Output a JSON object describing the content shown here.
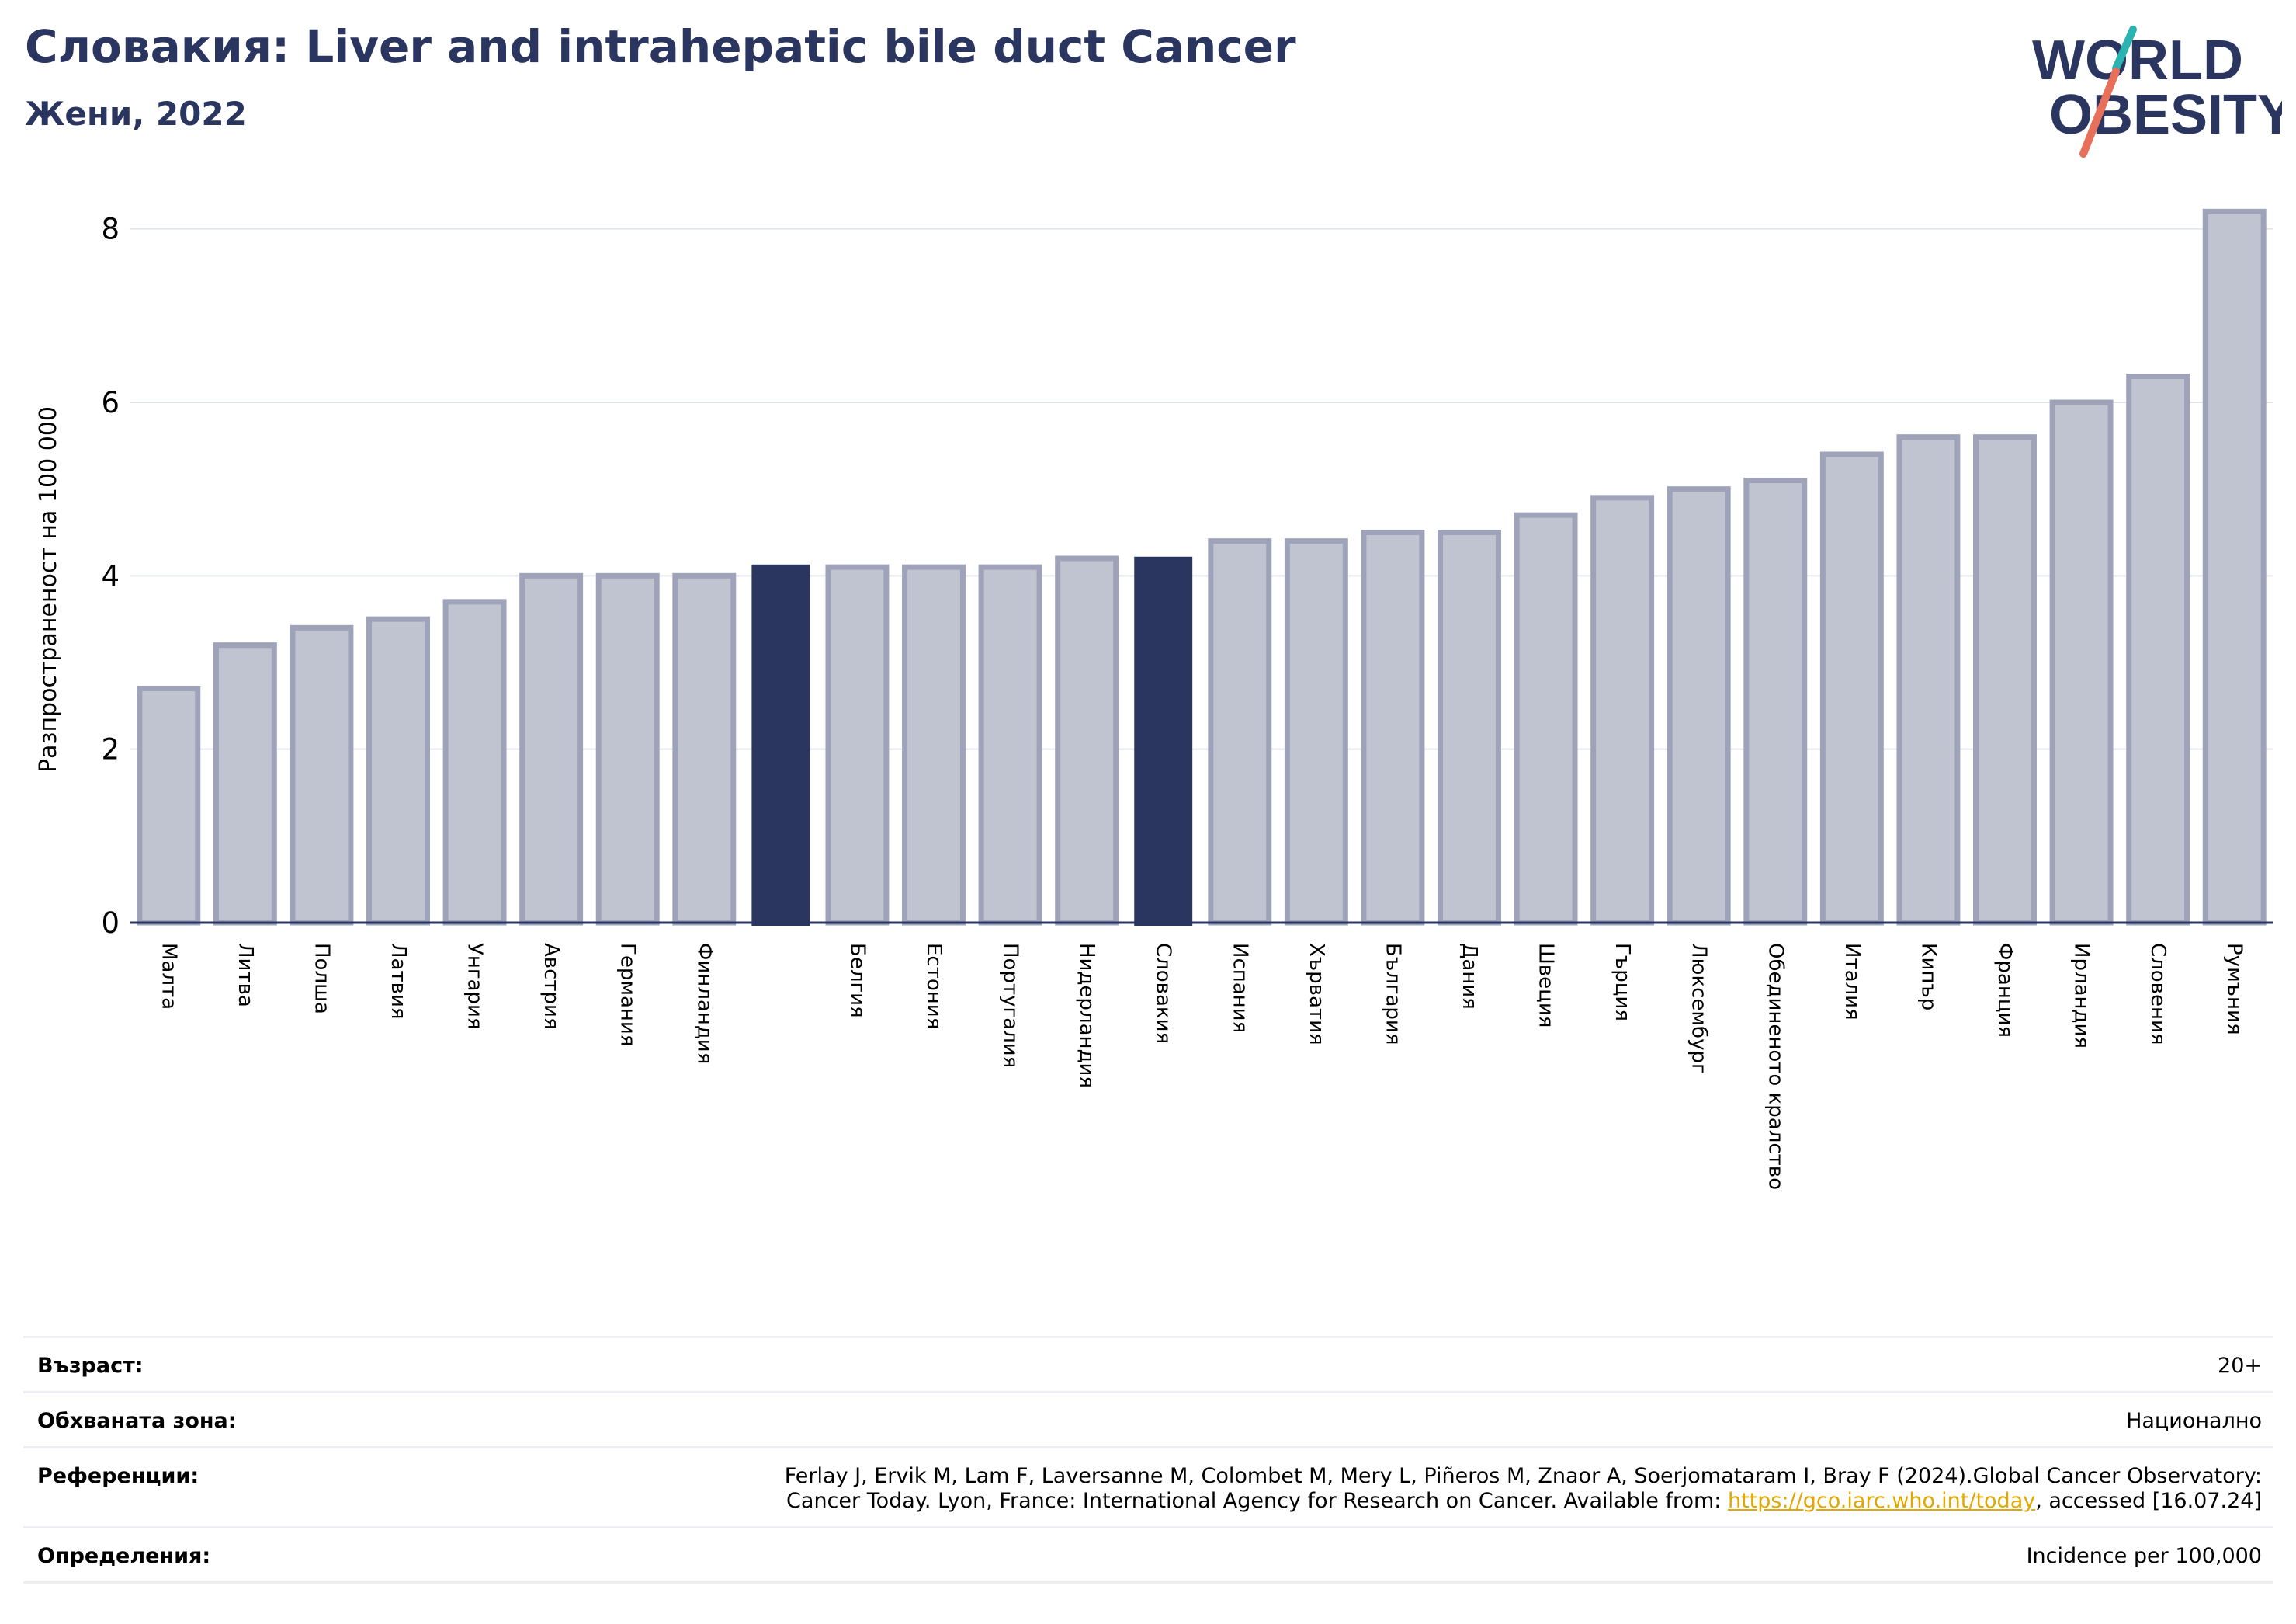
{
  "header": {
    "title": "Словакия: Liver and intrahepatic bile duct Cancer",
    "subtitle": "Жени, 2022"
  },
  "logo": {
    "line1": "WORLD",
    "line2": "OBESITY",
    "accent_teal": "#2bb3b1",
    "accent_coral": "#e8705a"
  },
  "chart_data": {
    "type": "bar",
    "ylabel": "Разпространеност  на 100 000",
    "ylim": [
      0,
      8.4
    ],
    "yticks": [
      0,
      2,
      4,
      6,
      8
    ],
    "grid": true,
    "categories": [
      "Малта",
      "Литва",
      "Полша",
      "Латвия",
      "Унгария",
      "Австрия",
      "Германия",
      "Финландия",
      "",
      "Белгия",
      "Естония",
      "Португалия",
      "Нидерландия",
      "Словакия",
      "Испания",
      "Хърватия",
      "България",
      "Дания",
      "Швеция",
      "Гърция",
      "Люксембург",
      "Обединеното кралство",
      "Италия",
      "Кипър",
      "Франция",
      "Ирландия",
      "Словения",
      "Румъния"
    ],
    "values": [
      2.7,
      3.2,
      3.4,
      3.5,
      3.7,
      4.0,
      4.0,
      4.0,
      4.13,
      4.1,
      4.1,
      4.1,
      4.2,
      4.22,
      4.4,
      4.4,
      4.5,
      4.5,
      4.7,
      4.9,
      5.0,
      5.1,
      5.4,
      5.6,
      5.6,
      6.0,
      6.3,
      8.2
    ],
    "highlighted": [
      8,
      13
    ],
    "colors": {
      "bar": "#c0c3d0",
      "bar_edge": "#9ea3ba",
      "highlight": "#2a3560",
      "grid": "#e3e5ec",
      "axis": "#2a3560"
    }
  },
  "info": {
    "age_label": "Възраст:",
    "age_value": "20+",
    "area_label": "Обхваната зона:",
    "area_value": "Национално",
    "refs_label": "Референции:",
    "refs_line1": "Ferlay J, Ervik M, Lam F, Laversanne M, Colombet M, Mery L, Piñeros M, Znaor A, Soerjomataram I, Bray F (2024).Global Cancer Observatory:",
    "refs_line2_pre": "Cancer Today. Lyon, France: International Agency for Research on Cancer. Available from: ",
    "refs_link": "https://gco.iarc.who.int/today",
    "refs_line2_post": ", accessed [16.07.24]",
    "defs_label": "Определения:",
    "defs_value": "Incidence per 100,000"
  }
}
